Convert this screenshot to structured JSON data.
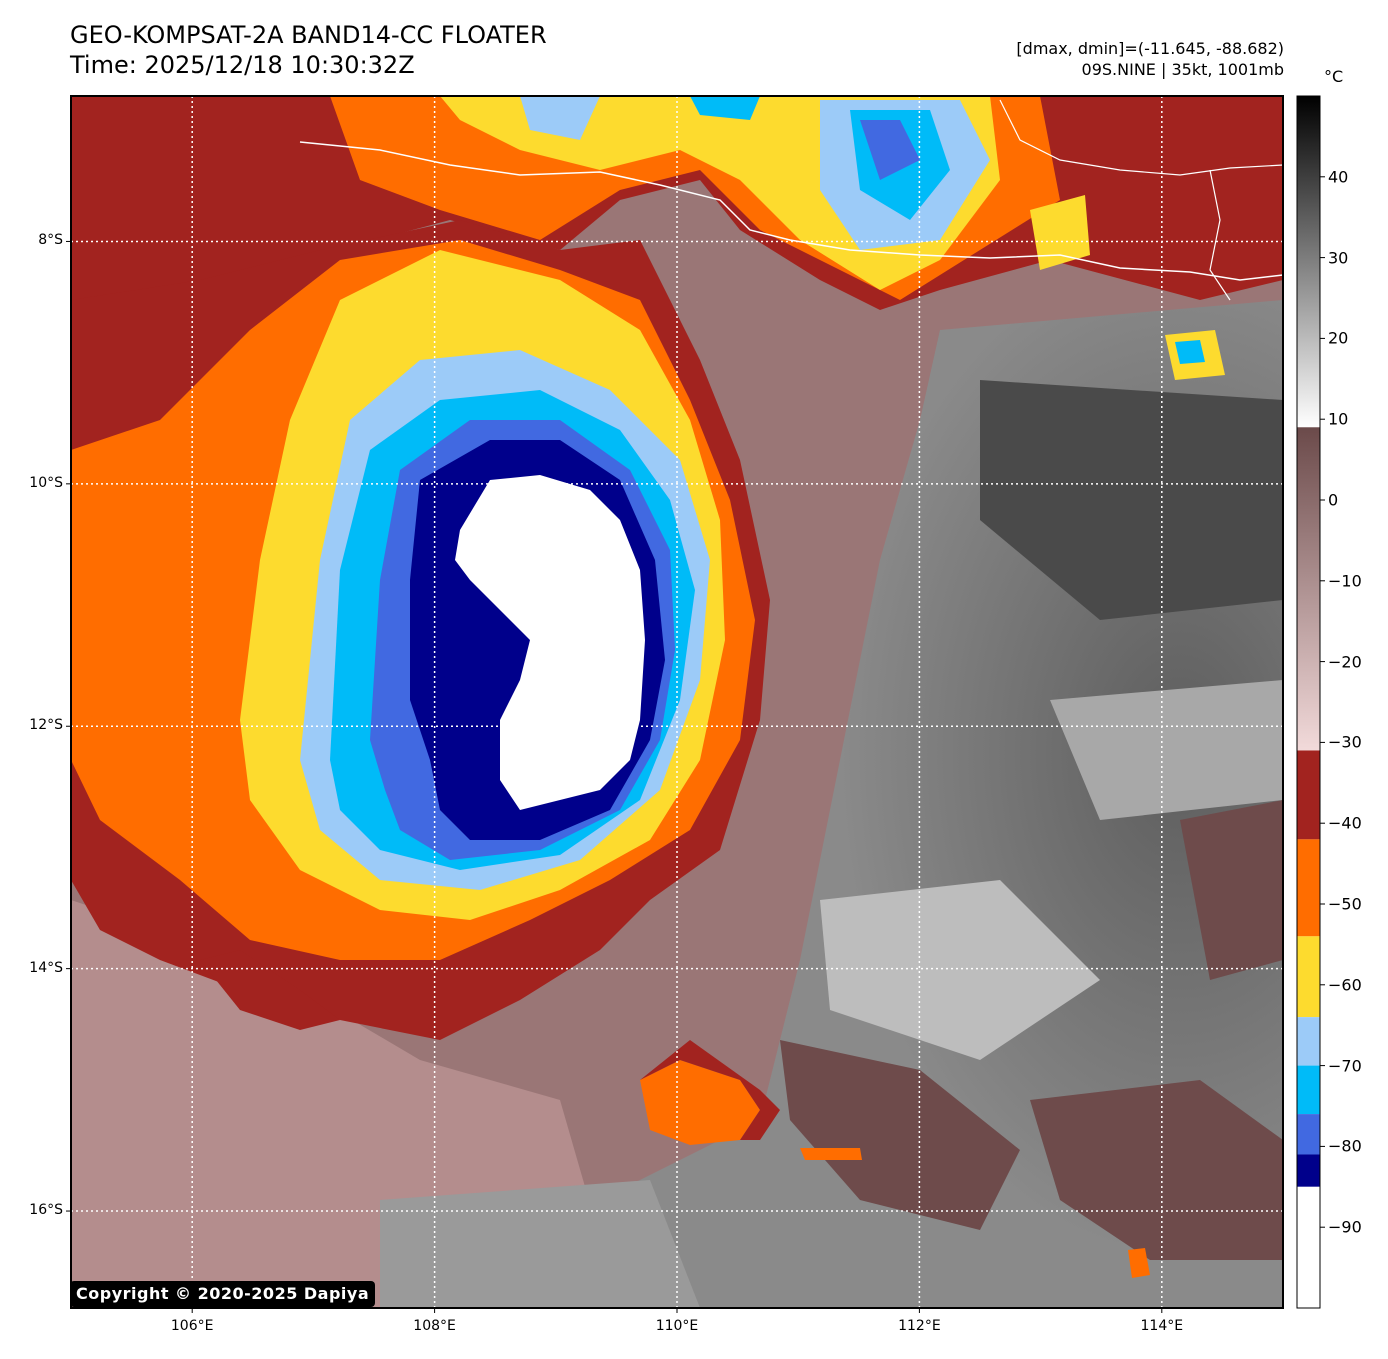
{
  "title": {
    "line1": "GEO-KOMPSAT-2A BAND14-CC FLOATER",
    "line2": "Time: 2025/12/18 10:30:32Z"
  },
  "meta": {
    "range": "[dmax, dmin]=(-11.645, -88.682)",
    "storm": "09S.NINE | 35kt, 1001mb"
  },
  "copyright": "Copyright © 2020-2025 Dapiya",
  "colorbar": {
    "unit": "°C",
    "ticks": [
      {
        "label": "40",
        "value": 40
      },
      {
        "label": "30",
        "value": 30
      },
      {
        "label": "20",
        "value": 20
      },
      {
        "label": "10",
        "value": 10
      },
      {
        "label": "0",
        "value": 0
      },
      {
        "label": "−10",
        "value": -10
      },
      {
        "label": "−20",
        "value": -20
      },
      {
        "label": "−30",
        "value": -30
      },
      {
        "label": "−40",
        "value": -40
      },
      {
        "label": "−50",
        "value": -50
      },
      {
        "label": "−60",
        "value": -60
      },
      {
        "label": "−70",
        "value": -70
      },
      {
        "label": "−80",
        "value": -80
      },
      {
        "label": "−90",
        "value": -90
      }
    ],
    "range": [
      -100,
      50
    ],
    "bands": [
      {
        "from": 50,
        "to": 9,
        "type": "gradient",
        "colors": [
          "#000000",
          "#ffffff"
        ]
      },
      {
        "from": 9,
        "to": -31,
        "type": "gradient",
        "colors": [
          "#6b4a4a",
          "#f2dada"
        ]
      },
      {
        "from": -31,
        "to": -42,
        "color": "#a2231f"
      },
      {
        "from": -42,
        "to": -54,
        "color": "#ff6d00"
      },
      {
        "from": -54,
        "to": -64,
        "color": "#fddb2e"
      },
      {
        "from": -64,
        "to": -70,
        "color": "#9ccbf8"
      },
      {
        "from": -70,
        "to": -76,
        "color": "#00bbf8"
      },
      {
        "from": -76,
        "to": -81,
        "color": "#4169e1"
      },
      {
        "from": -81,
        "to": -85,
        "color": "#00008b"
      },
      {
        "from": -85,
        "to": -100,
        "color": "#ffffff"
      }
    ]
  },
  "map": {
    "lon_range": [
      105,
      115
    ],
    "lat_range": [
      -6.8,
      -16.8
    ],
    "lon_ticks": [
      {
        "label": "106°E",
        "value": 106
      },
      {
        "label": "108°E",
        "value": 108
      },
      {
        "label": "110°E",
        "value": 110
      },
      {
        "label": "112°E",
        "value": 112
      },
      {
        "label": "114°E",
        "value": 114
      }
    ],
    "lat_ticks": [
      {
        "label": "8°S",
        "value": -8
      },
      {
        "label": "10°S",
        "value": -10
      },
      {
        "label": "12°S",
        "value": -12
      },
      {
        "label": "14°S",
        "value": -14
      },
      {
        "label": "16°S",
        "value": -16
      }
    ],
    "storm_center": {
      "lon": 108.85,
      "lat": -11.5
    },
    "colors": {
      "clear_dark": "#555555",
      "warm_brown": "#6e4b4b",
      "pink": "#e6c3c3",
      "dark_red": "#a2231f",
      "orange": "#ff6d00",
      "yellow": "#fddb2e",
      "light_blue": "#9ccbf8",
      "cyan": "#00bbf8",
      "royal_blue": "#4169e1",
      "navy": "#00008b",
      "white": "#ffffff"
    }
  }
}
